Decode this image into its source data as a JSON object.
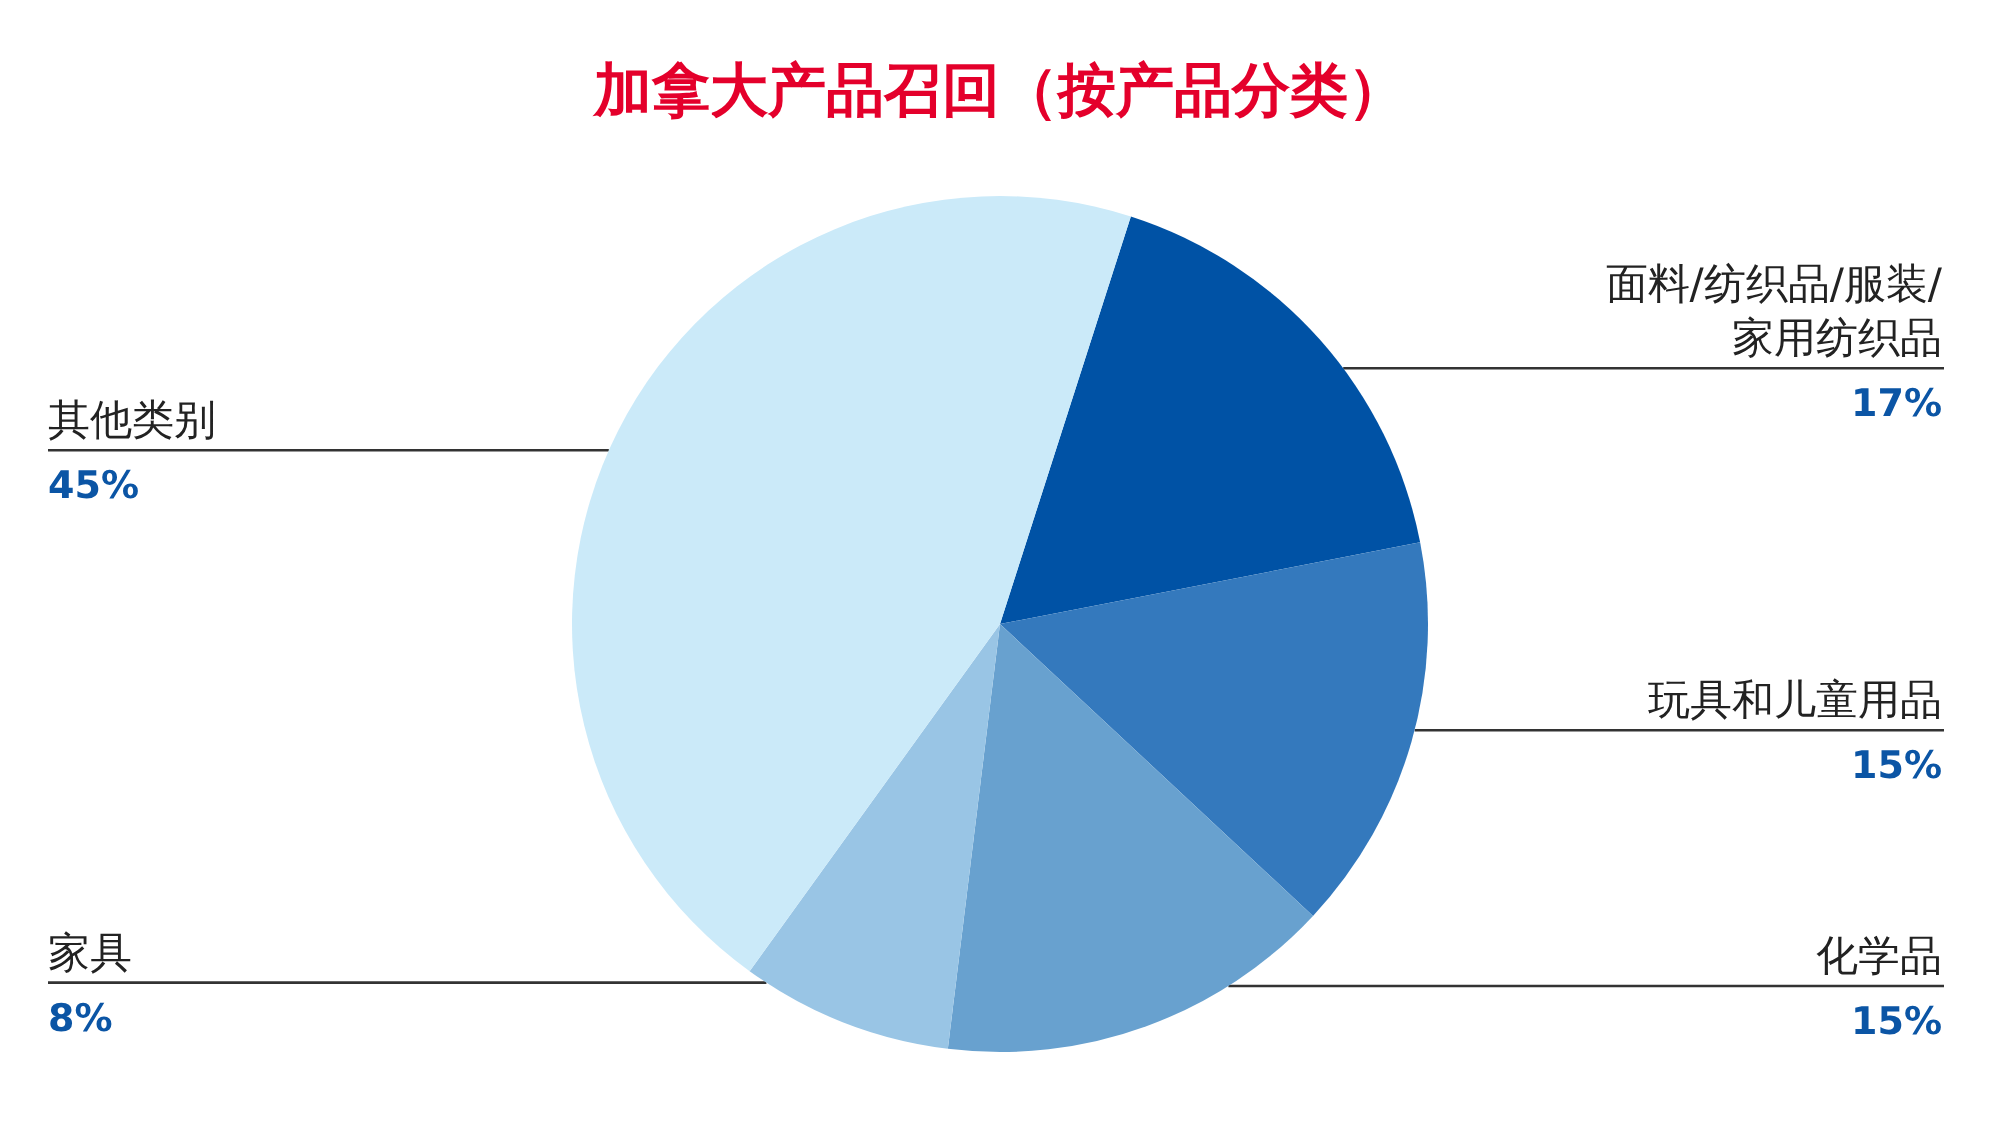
{
  "chart_data": {
    "type": "pie",
    "title": "加拿大产品召回（按产品分类）",
    "categories": [
      "面料/纺织品/服装/家用纺织品",
      "玩具和儿童用品",
      "化学品",
      "家具",
      "其他类别"
    ],
    "values": [
      17,
      15,
      15,
      8,
      45
    ],
    "colors": [
      "#0052a5",
      "#3479bd",
      "#68a1cf",
      "#99c5e5",
      "#cbeaf9"
    ],
    "value_labels": [
      "17%",
      "15%",
      "15%",
      "8%",
      "45%"
    ]
  }
}
